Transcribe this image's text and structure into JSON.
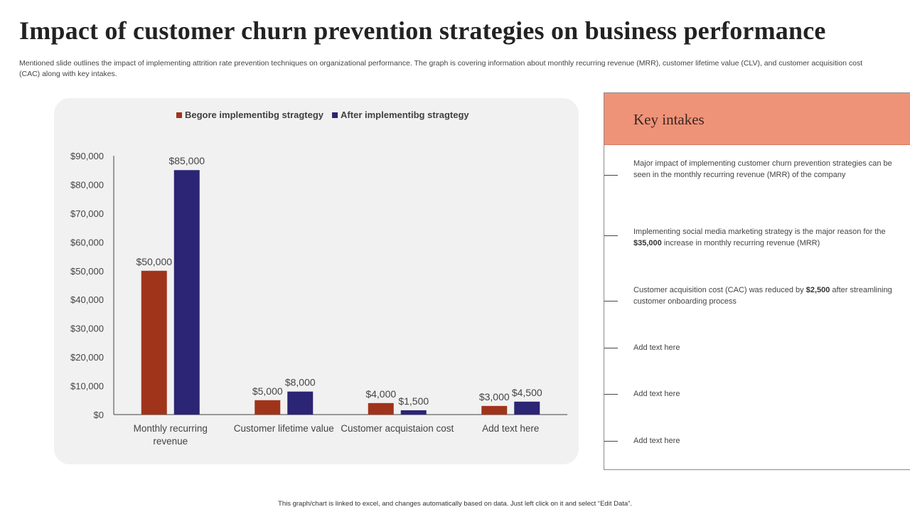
{
  "page": {
    "title": "Impact of  customer churn prevention strategies on business performance",
    "subtitle": "Mentioned slide outlines the impact of implementing attrition rate prevention techniques on organizational performance. The graph is covering information about monthly recurring revenue (MRR), customer lifetime value (CLV), and customer acquisition cost (CAC) along with key intakes.",
    "footer": "This graph/chart is linked to excel, and changes automatically based on data. Just left click on it and select “Edit Data”."
  },
  "chart_data": {
    "type": "bar",
    "categories": [
      [
        "Monthly recurring",
        "revenue"
      ],
      [
        "Customer lifetime value"
      ],
      [
        "Customer acquistaion cost"
      ],
      [
        "Add text here"
      ]
    ],
    "series": [
      {
        "name": "Begore implementibg stragtegy",
        "color": "#a0341a",
        "values": [
          50000,
          5000,
          4000,
          3000
        ],
        "labels": [
          "$50,000",
          "$5,000",
          "$4,000",
          "$3,000"
        ]
      },
      {
        "name": "After implementibg stragtegy",
        "color": "#2c2474",
        "values": [
          85000,
          8000,
          1500,
          4500
        ],
        "labels": [
          "$85,000",
          "$8,000",
          "$1,500",
          "$4,500"
        ]
      }
    ],
    "ylim": [
      0,
      90000
    ],
    "yticks": [
      0,
      10000,
      20000,
      30000,
      40000,
      50000,
      60000,
      70000,
      80000,
      90000
    ],
    "ytick_labels": [
      "$0",
      "$10,000",
      "$20,000",
      "$30,000",
      "$40,000",
      "$50,000",
      "$60,000",
      "$70,000",
      "$80,000",
      "$90,000"
    ],
    "title": "",
    "xlabel": "",
    "ylabel": "",
    "legend_position": "top",
    "grid": false
  },
  "intakes": {
    "title": "Key intakes",
    "items": [
      {
        "pre": "Major impact of implementing customer churn prevention strategies can be seen in the monthly recurring revenue (MRR) of the company",
        "bold": "",
        "post": ""
      },
      {
        "pre": "Implementing social media marketing strategy is the major reason for the ",
        "bold": "$35,000",
        "post": " increase in monthly recurring revenue (MRR)"
      },
      {
        "pre": "Customer acquisition cost (CAC) was reduced by ",
        "bold": "$2,500",
        "post": " after streamlining customer onboarding process"
      },
      {
        "pre": "Add text here",
        "bold": "",
        "post": ""
      },
      {
        "pre": "Add text here",
        "bold": "",
        "post": ""
      },
      {
        "pre": "Add text here",
        "bold": "",
        "post": ""
      }
    ]
  }
}
